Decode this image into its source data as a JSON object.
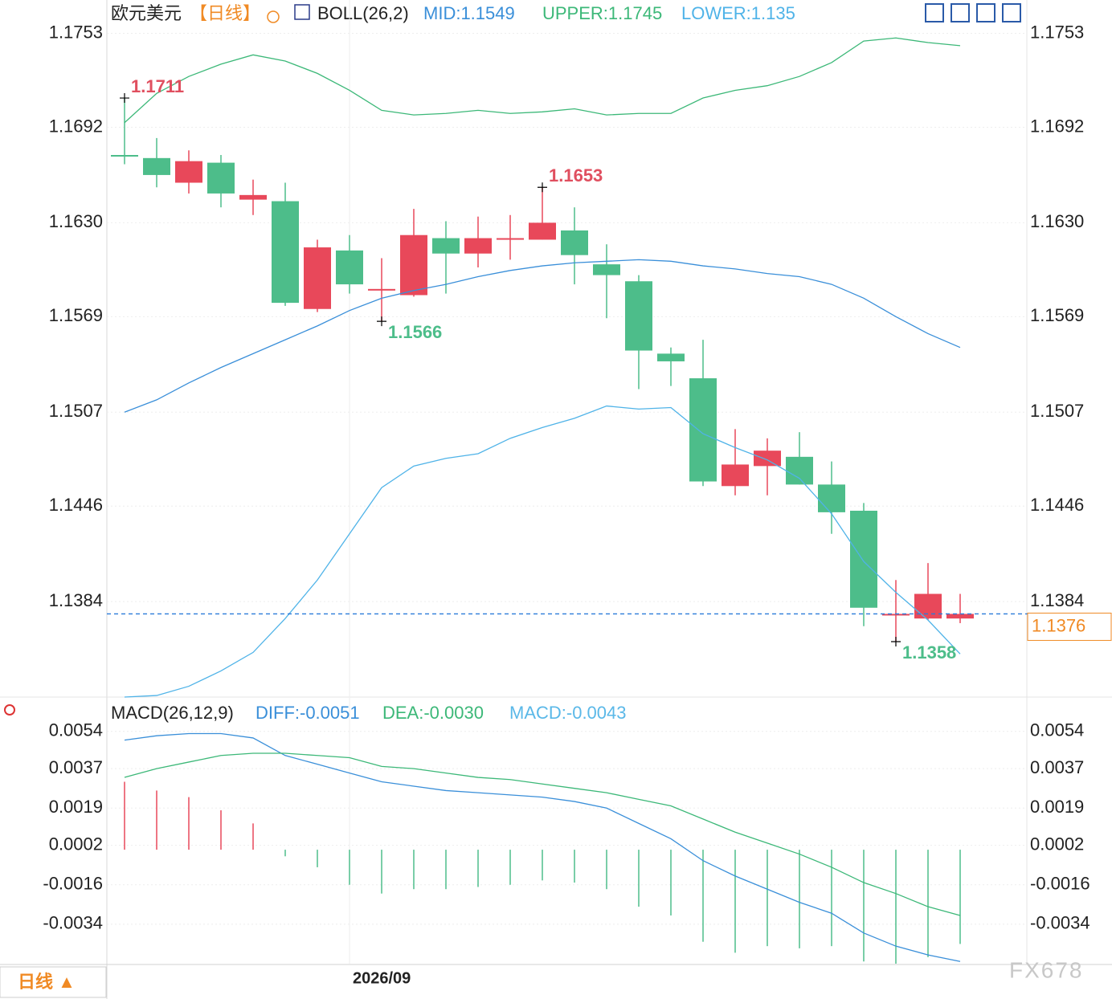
{
  "chart_data": [
    {
      "type": "candlestick",
      "title": "欧元美元",
      "period": "【日线】",
      "indicator": "BOLL(26,2)",
      "up_color": "#e8485a",
      "down_color": "#4dbd8a",
      "open": [
        1.1674,
        1.1672,
        1.1656,
        1.1669,
        1.1645,
        1.1644,
        1.1574,
        1.1612,
        1.1586,
        1.1583,
        1.162,
        1.161,
        1.1619,
        1.1619,
        1.1625,
        1.1603,
        1.1592,
        1.1545,
        1.1529,
        1.1459,
        1.1472,
        1.1478,
        1.146,
        1.1443,
        1.1375,
        1.1373,
        1.1373
      ],
      "high": [
        1.1711,
        1.1685,
        1.1677,
        1.1674,
        1.1658,
        1.1656,
        1.1619,
        1.1622,
        1.1607,
        1.1639,
        1.1631,
        1.1634,
        1.1635,
        1.1653,
        1.164,
        1.1616,
        1.1596,
        1.1549,
        1.1554,
        1.1496,
        1.149,
        1.1494,
        1.1475,
        1.1448,
        1.1398,
        1.1409,
        1.1389
      ],
      "low": [
        1.1668,
        1.1653,
        1.1649,
        1.164,
        1.1635,
        1.1576,
        1.1572,
        1.1584,
        1.1566,
        1.1582,
        1.1584,
        1.1601,
        1.1606,
        1.1619,
        1.159,
        1.1568,
        1.1522,
        1.1524,
        1.1459,
        1.1453,
        1.1453,
        1.146,
        1.1428,
        1.1368,
        1.1358,
        1.1372,
        1.137
      ],
      "close": [
        1.1674,
        1.1661,
        1.167,
        1.1649,
        1.1648,
        1.1578,
        1.1614,
        1.159,
        1.1587,
        1.1622,
        1.161,
        1.162,
        1.162,
        1.163,
        1.1609,
        1.1596,
        1.1547,
        1.154,
        1.1462,
        1.1473,
        1.1482,
        1.146,
        1.1442,
        1.138,
        1.1376,
        1.1389,
        1.1376
      ],
      "series": [
        {
          "name": "MID:1.1549",
          "color": "#3a8fd9",
          "values": [
            1.1507,
            1.1515,
            1.1526,
            1.1536,
            1.1545,
            1.1554,
            1.1563,
            1.1573,
            1.1581,
            1.1586,
            1.159,
            1.1595,
            1.1599,
            1.1602,
            1.1604,
            1.1605,
            1.1606,
            1.1605,
            1.1602,
            1.16,
            1.1597,
            1.1595,
            1.159,
            1.1581,
            1.1569,
            1.1558,
            1.1549
          ]
        },
        {
          "name": "UPPER:1.1745",
          "color": "#3cb878",
          "values": [
            1.1695,
            1.1714,
            1.1725,
            1.1733,
            1.1739,
            1.1735,
            1.1727,
            1.1716,
            1.1703,
            1.17,
            1.1701,
            1.1703,
            1.1701,
            1.1702,
            1.1704,
            1.17,
            1.1701,
            1.1701,
            1.1711,
            1.1716,
            1.1719,
            1.1725,
            1.1734,
            1.1748,
            1.175,
            1.1747,
            1.1745
          ]
        },
        {
          "name": "LOWER:1.135",
          "color": "#4fb3e8",
          "values": [
            1.1322,
            1.1323,
            1.1329,
            1.1339,
            1.1351,
            1.1373,
            1.1398,
            1.1428,
            1.1458,
            1.1472,
            1.1477,
            1.148,
            1.149,
            1.1497,
            1.1503,
            1.1511,
            1.1509,
            1.151,
            1.1493,
            1.1484,
            1.1476,
            1.1464,
            1.1441,
            1.141,
            1.139,
            1.1372,
            1.135
          ]
        }
      ],
      "annotations": [
        {
          "index": 0,
          "value": 1.1711,
          "color": "#e04f5f"
        },
        {
          "index": 13,
          "value": 1.1653,
          "color": "#e04f5f"
        },
        {
          "index": 8,
          "value": 1.1566,
          "color": "#4dbd8a"
        },
        {
          "index": 24,
          "value": 1.1358,
          "color": "#4dbd8a"
        }
      ],
      "last_price": 1.1376,
      "ylim": [
        1.1322,
        1.1759
      ],
      "yticks": [
        1.1384,
        1.1446,
        1.1507,
        1.1569,
        {
          "value": 1.163,
          "label": "1.1630"
        },
        1.1692,
        1.1753
      ],
      "x_labels": [
        {
          "index": 7,
          "label": "2026/09"
        }
      ],
      "grid": true
    },
    {
      "type": "macd",
      "title": "MACD(26,12,9)",
      "up_color": "#e8485a",
      "down_color": "#4dbd8a",
      "histogram": [
        0.0031,
        0.0027,
        0.0024,
        0.0018,
        0.0012,
        -0.0003,
        -0.0008,
        -0.0016,
        -0.002,
        -0.0018,
        -0.0018,
        -0.0017,
        -0.0016,
        -0.0014,
        -0.0015,
        -0.0018,
        -0.0026,
        -0.003,
        -0.0042,
        -0.0047,
        -0.0044,
        -0.0045,
        -0.0044,
        -0.0051,
        -0.0052,
        -0.0049,
        -0.0043
      ],
      "histogram_name": "MACD:-0.0043",
      "histogram_color": "#5ab8e8",
      "series": [
        {
          "name": "DIFF:-0.0051",
          "color": "#3a8fd9",
          "values": [
            0.005,
            0.0052,
            0.0053,
            0.0053,
            0.0051,
            0.0043,
            0.0039,
            0.0035,
            0.0031,
            0.0029,
            0.0027,
            0.0026,
            0.0025,
            0.0024,
            0.0022,
            0.0019,
            0.0012,
            0.0005,
            -0.0005,
            -0.0012,
            -0.0018,
            -0.0024,
            -0.0029,
            -0.0038,
            -0.0044,
            -0.0048,
            -0.0051
          ]
        },
        {
          "name": "DEA:-0.0030",
          "color": "#3cb878",
          "values": [
            0.0033,
            0.0037,
            0.004,
            0.0043,
            0.0044,
            0.0044,
            0.0043,
            0.0042,
            0.0038,
            0.0037,
            0.0035,
            0.0033,
            0.0032,
            0.003,
            0.0028,
            0.0026,
            0.0023,
            0.002,
            0.0014,
            0.0008,
            0.0003,
            -0.0002,
            -0.0008,
            -0.0015,
            -0.002,
            -0.0026,
            -0.003
          ]
        }
      ],
      "ylim": [
        -0.0052,
        0.0066
      ],
      "yticks": [
        0.0054,
        0.0037,
        0.0019,
        0.0002,
        -0.0016,
        -0.0034
      ]
    }
  ],
  "footer": {
    "tab": "日线 ▲",
    "watermark": "FX678"
  }
}
